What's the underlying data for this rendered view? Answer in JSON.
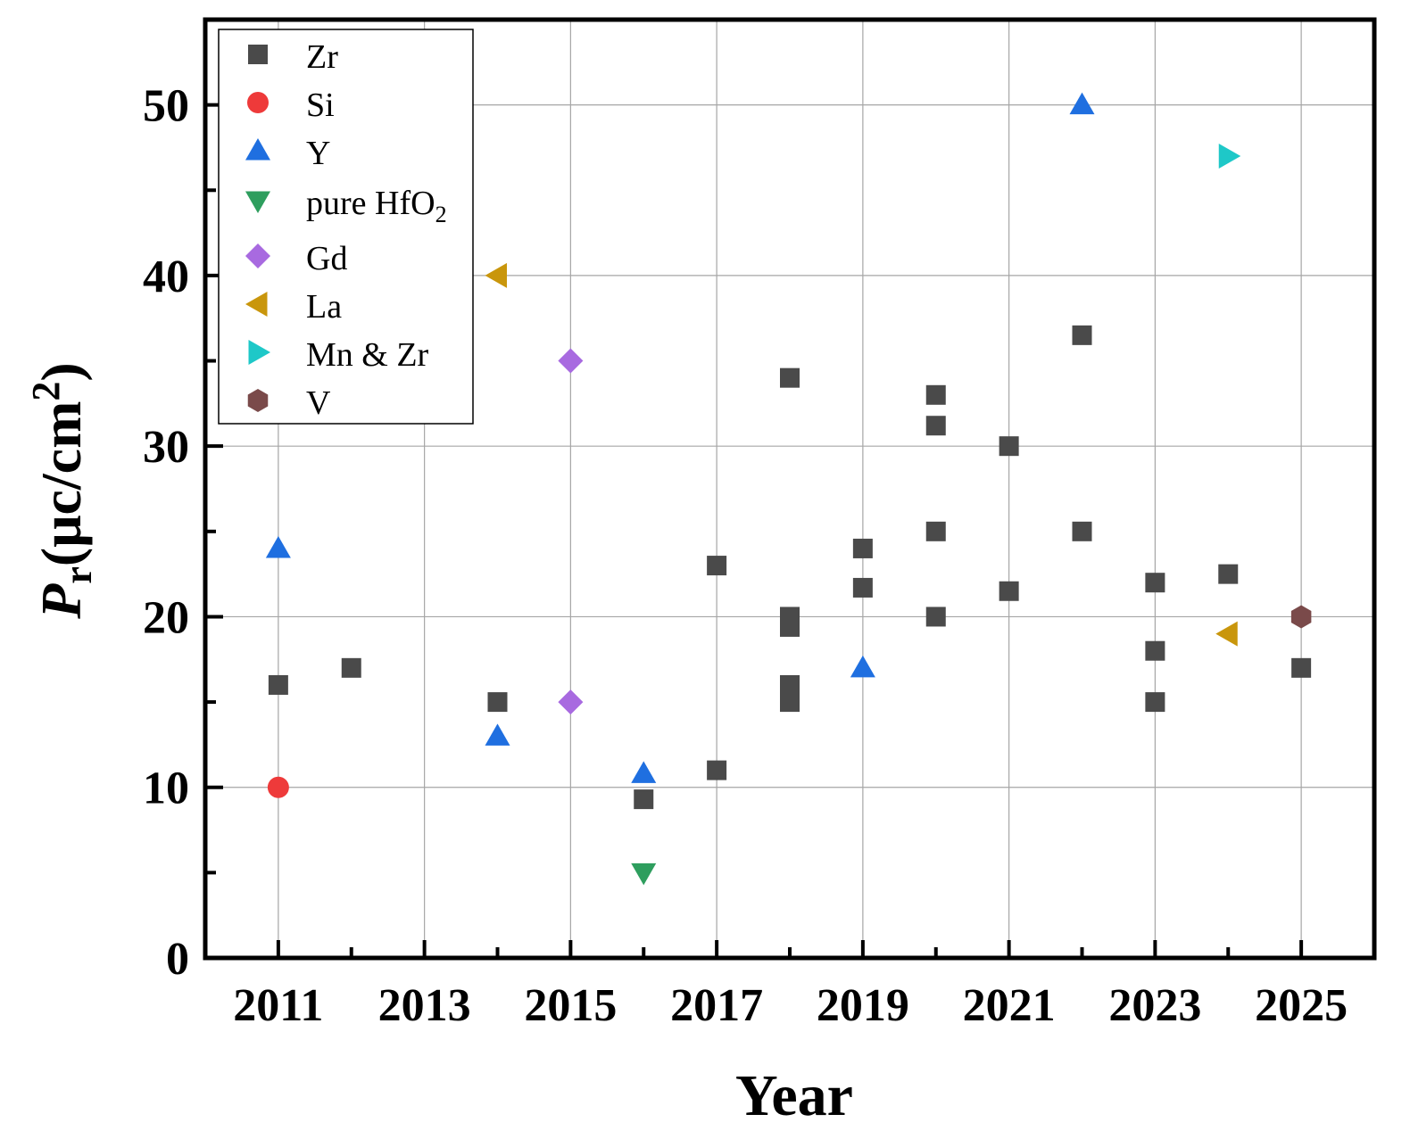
{
  "chart_data": {
    "type": "scatter",
    "xlabel": "Year",
    "ylabel": {
      "main": "P",
      "sub": "r",
      "unit": "(μc/cm",
      "sup": "2",
      "close": ")"
    },
    "xlim": [
      2010,
      2026
    ],
    "ylim": [
      0,
      55
    ],
    "xticks": [
      "2011",
      "2013",
      "2015",
      "2017",
      "2019",
      "2021",
      "2023",
      "2025"
    ],
    "xtick_values": [
      2011,
      2013,
      2015,
      2017,
      2019,
      2021,
      2023,
      2025
    ],
    "yticks": [
      "0",
      "10",
      "20",
      "30",
      "40",
      "50"
    ],
    "ytick_values": [
      0,
      10,
      20,
      30,
      40,
      50
    ],
    "grid": true,
    "legend_position": "top-left",
    "series": [
      {
        "name": "Zr",
        "marker": "square",
        "color": "#4a4a4a",
        "points": [
          [
            2011,
            16
          ],
          [
            2012,
            17
          ],
          [
            2014,
            15
          ],
          [
            2016,
            9.3
          ],
          [
            2017,
            23
          ],
          [
            2017,
            11
          ],
          [
            2018,
            34
          ],
          [
            2018,
            20
          ],
          [
            2018,
            19.4
          ],
          [
            2018,
            16
          ],
          [
            2018,
            15
          ],
          [
            2019,
            24
          ],
          [
            2019,
            21.7
          ],
          [
            2020,
            33
          ],
          [
            2020,
            31.2
          ],
          [
            2020,
            25
          ],
          [
            2020,
            20
          ],
          [
            2021,
            30
          ],
          [
            2021,
            21.5
          ],
          [
            2022,
            36.5
          ],
          [
            2022,
            25
          ],
          [
            2023,
            22
          ],
          [
            2023,
            18
          ],
          [
            2023,
            15
          ],
          [
            2024,
            22.5
          ],
          [
            2025,
            17
          ]
        ]
      },
      {
        "name": "Si",
        "marker": "circle",
        "color": "#ee3a3a",
        "points": [
          [
            2011,
            10
          ]
        ]
      },
      {
        "name": "Y",
        "marker": "triangle-up",
        "color": "#1f6fe0",
        "points": [
          [
            2011,
            24
          ],
          [
            2014,
            13
          ],
          [
            2016,
            10.8
          ],
          [
            2019,
            17
          ],
          [
            2022,
            50
          ]
        ]
      },
      {
        "name": "pure HfO",
        "name_sub": "2",
        "marker": "triangle-down",
        "color": "#2e9e5e",
        "points": [
          [
            2016,
            5
          ]
        ]
      },
      {
        "name": "Gd",
        "marker": "diamond",
        "color": "#a86ae0",
        "points": [
          [
            2015,
            35
          ],
          [
            2015,
            15
          ]
        ]
      },
      {
        "name": "La",
        "marker": "triangle-left",
        "color": "#c9960c",
        "points": [
          [
            2014,
            40
          ],
          [
            2024,
            19
          ]
        ]
      },
      {
        "name": "Mn & Zr",
        "marker": "triangle-right",
        "color": "#1ec8c8",
        "points": [
          [
            2024,
            47
          ]
        ]
      },
      {
        "name": "V",
        "marker": "hexagon",
        "color": "#7a4a4a",
        "points": [
          [
            2025,
            20
          ]
        ]
      }
    ]
  }
}
